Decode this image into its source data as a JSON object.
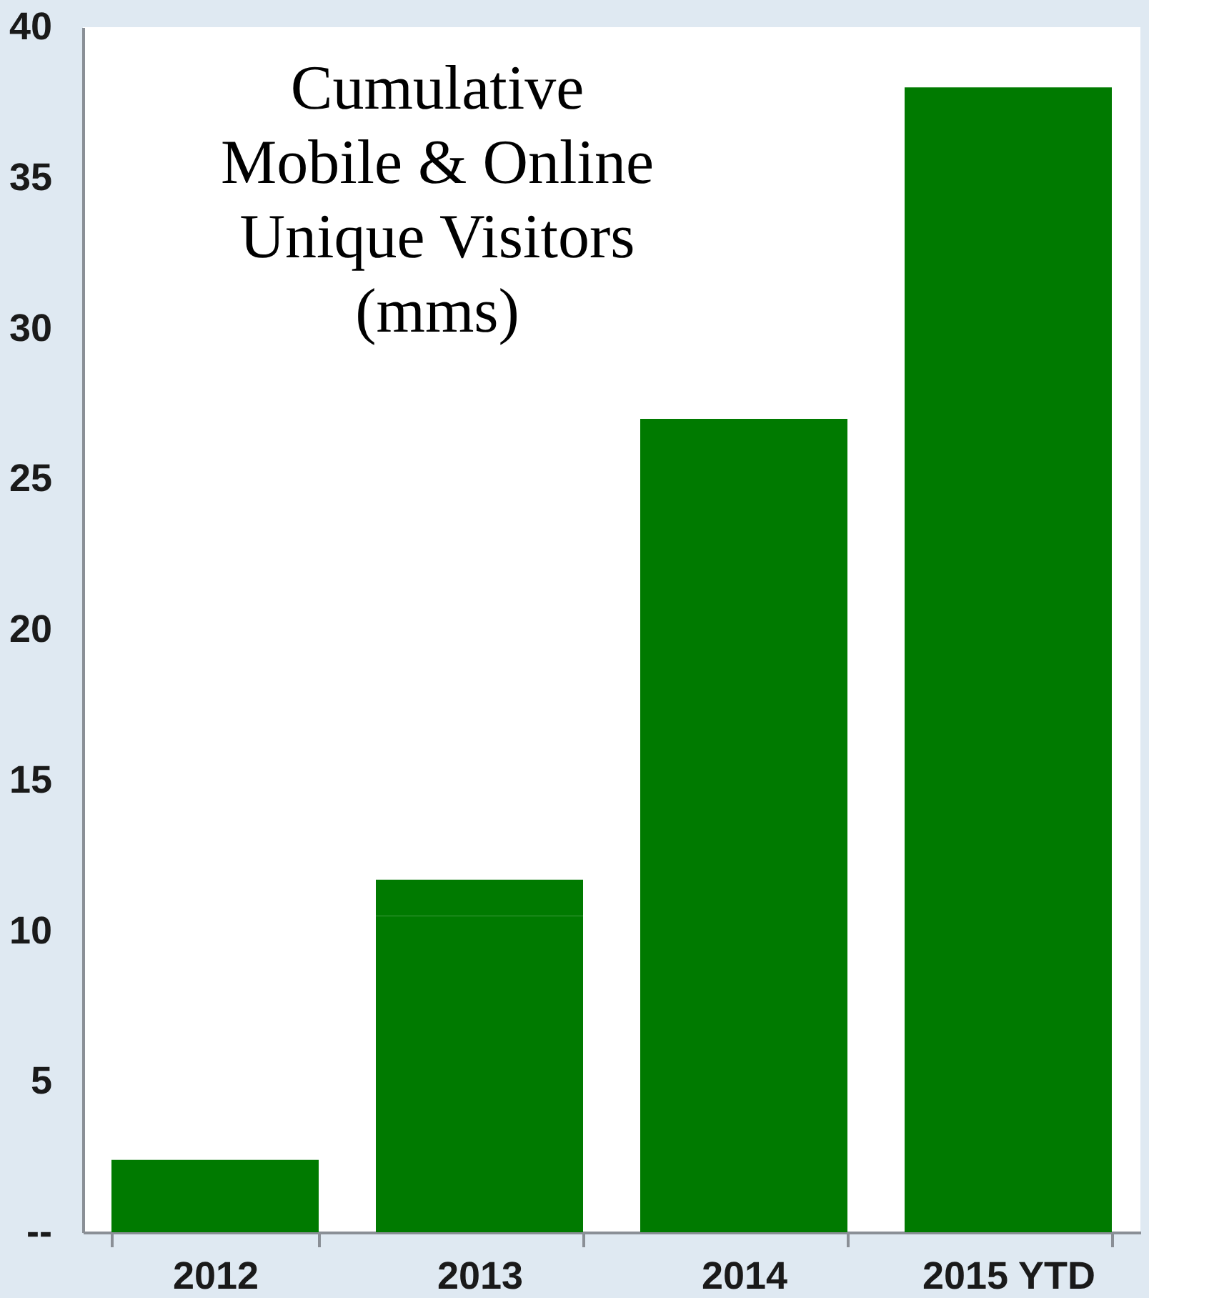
{
  "chart_data": {
    "type": "bar",
    "title": "Cumulative\nMobile & Online\nUnique Visitors\n(mms)",
    "categories": [
      "2012",
      "2013",
      "2014",
      "2015 YTD"
    ],
    "stacked": true,
    "series": [
      {
        "color": "#007a00",
        "values": [
          2.4,
          10.5,
          20,
          33.5
        ]
      },
      {
        "color": "#007a00",
        "values": [
          null,
          1.2,
          7,
          4.5
        ]
      }
    ],
    "ylim": [
      0,
      40
    ],
    "yticks": [
      {
        "value": 0,
        "label": "--"
      },
      5,
      10,
      15,
      20,
      25,
      30,
      35,
      40
    ],
    "grid": false,
    "legend": false
  }
}
